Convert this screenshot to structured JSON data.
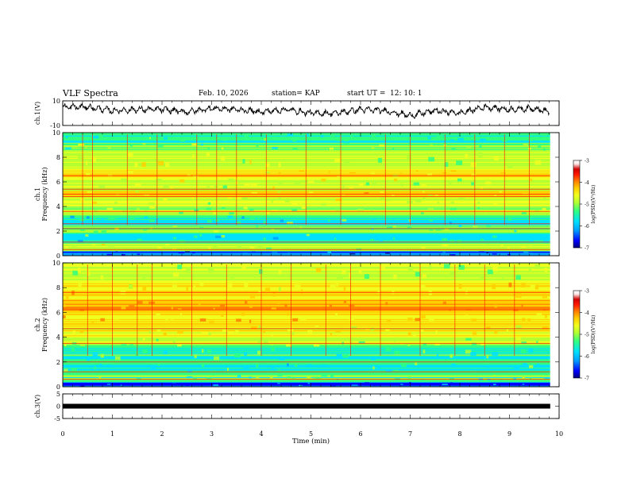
{
  "header": {
    "title": "VLF Spectra",
    "date": "Feb. 10, 2026",
    "station": "station= KAP",
    "start_ut_label": "start  UT  =",
    "start_ut_value": "12: 10: 1"
  },
  "colors": {
    "colormap": [
      "#00007a",
      "#0000ff",
      "#00a0ff",
      "#00e0ff",
      "#30ff80",
      "#b4ff30",
      "#f0ff20",
      "#ffd000",
      "#ff8000",
      "#ff1800",
      "#d00000",
      "#ffe8e8",
      "#ffffff"
    ],
    "trace": "#000000"
  },
  "chart_data": [
    {
      "type": "line",
      "name": "ch1-waveform",
      "ylabel": "ch.1(V)",
      "ylim": [
        -10,
        10
      ],
      "yticks": [
        "10",
        "-10"
      ],
      "x": [
        0,
        0.5,
        1.0,
        1.5,
        2.0,
        2.5,
        3.0,
        3.5,
        4.0,
        4.5,
        5.0,
        5.5,
        6.0,
        6.5,
        7.0,
        7.5,
        8.0,
        8.5,
        9.0,
        9.5,
        9.8
      ],
      "y": [
        5,
        5,
        2,
        3,
        3,
        1,
        4,
        3,
        1,
        3,
        0,
        0,
        3,
        2,
        -2,
        2,
        0,
        5,
        3,
        4,
        1
      ],
      "note": "noisy waveform, values approximated"
    },
    {
      "type": "heatmap",
      "name": "ch1-spectrogram",
      "ylabel": "ch.1\nFrequency  (kHz)",
      "ylim": [
        0,
        10
      ],
      "yticks": [
        "0",
        "2",
        "4",
        "6",
        "8",
        "10"
      ],
      "colorbar": {
        "label": "log(PSD)(V²/Hz)",
        "range": [
          -7,
          -3
        ],
        "ticks": [
          "-3",
          "-4",
          "-5",
          "-6",
          "-7"
        ]
      },
      "bands": [
        {
          "from": 0.0,
          "to": 0.4,
          "level": 1.5
        },
        {
          "from": 0.4,
          "to": 1.0,
          "level": 5.5
        },
        {
          "from": 1.0,
          "to": 1.8,
          "level": 3.5
        },
        {
          "from": 1.8,
          "to": 2.5,
          "level": 4.5
        },
        {
          "from": 2.5,
          "to": 3.3,
          "level": 3.5
        },
        {
          "from": 3.3,
          "to": 4.0,
          "level": 5.0
        },
        {
          "from": 4.0,
          "to": 4.8,
          "level": 5.5
        },
        {
          "from": 4.8,
          "to": 5.3,
          "level": 6.5
        },
        {
          "from": 5.3,
          "to": 6.3,
          "level": 5.5
        },
        {
          "from": 6.3,
          "to": 7.0,
          "level": 6.5
        },
        {
          "from": 7.0,
          "to": 8.5,
          "level": 5.5
        },
        {
          "from": 8.5,
          "to": 9.2,
          "level": 4.5
        },
        {
          "from": 9.2,
          "to": 10.0,
          "level": 3.5
        }
      ],
      "lines_khz": [
        0.5,
        1.1,
        2.2,
        2.6,
        3.6,
        4.8,
        5.0,
        5.4,
        6.5
      ],
      "spikes_min": [
        0.4,
        0.6,
        1.3,
        1.9,
        2.7,
        3.1,
        3.5,
        4.1,
        4.9,
        5.6,
        6.5,
        7.0,
        7.7,
        8.3,
        8.9,
        9.4
      ]
    },
    {
      "type": "heatmap",
      "name": "ch2-spectrogram",
      "ylabel": "ch.2\nFrequency  (kHz)",
      "ylim": [
        0,
        10
      ],
      "yticks": [
        "0",
        "2",
        "4",
        "6",
        "8",
        "10"
      ],
      "colorbar": {
        "label": "log(PSD)(V²/Hz)",
        "range": [
          -7,
          -3
        ],
        "ticks": [
          "-3",
          "-4",
          "-5",
          "-6",
          "-7"
        ]
      },
      "bands": [
        {
          "from": 0.0,
          "to": 0.4,
          "level": 1.5
        },
        {
          "from": 0.4,
          "to": 1.0,
          "level": 4.0
        },
        {
          "from": 1.0,
          "to": 2.0,
          "level": 3.5
        },
        {
          "from": 2.0,
          "to": 3.2,
          "level": 4.0
        },
        {
          "from": 3.2,
          "to": 4.0,
          "level": 5.0
        },
        {
          "from": 4.0,
          "to": 5.0,
          "level": 6.0
        },
        {
          "from": 5.0,
          "to": 6.0,
          "level": 6.8
        },
        {
          "from": 6.0,
          "to": 7.0,
          "level": 7.4
        },
        {
          "from": 7.0,
          "to": 8.5,
          "level": 6.5
        },
        {
          "from": 8.5,
          "to": 10.0,
          "level": 5.5
        }
      ],
      "lines_khz": [
        0.6,
        1.2,
        2.0,
        3.5,
        4.7,
        6.2,
        7.6
      ],
      "spikes_min": [
        0.5,
        1.0,
        1.5,
        1.8,
        2.6,
        3.3,
        4.0,
        4.6,
        5.3,
        5.8,
        6.4,
        7.2,
        7.9,
        8.5,
        9.1
      ]
    },
    {
      "type": "line",
      "name": "ch3-waveform",
      "ylabel": "ch.3(V)",
      "ylim": [
        -5,
        5
      ],
      "yticks": [
        "5",
        "0",
        "-5"
      ],
      "x": [
        0,
        9.8
      ],
      "y": [
        0,
        0
      ],
      "note": "flat thick trace near 0 V"
    }
  ],
  "xaxis": {
    "label": "Time  (min)",
    "range": [
      0,
      10
    ],
    "ticks": [
      "0",
      "1",
      "2",
      "3",
      "4",
      "5",
      "6",
      "7",
      "8",
      "9",
      "10"
    ]
  }
}
